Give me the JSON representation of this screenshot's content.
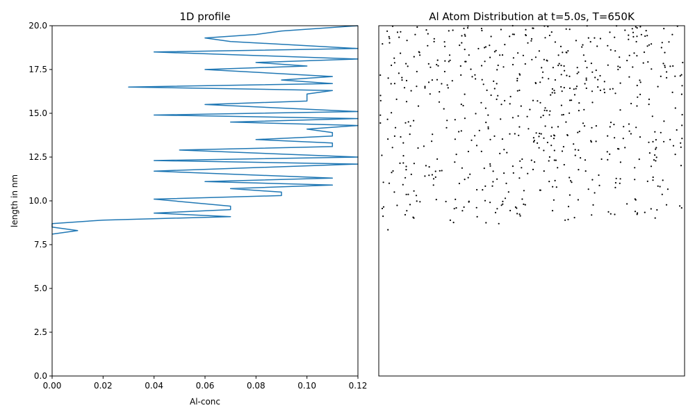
{
  "colors": {
    "line": "#1f77b4",
    "dots": "#000000",
    "axes": "#000000"
  },
  "chart_data": [
    {
      "type": "line",
      "title": "1D profile",
      "xlabel": "Al-conc",
      "ylabel": "length in nm",
      "xlim": [
        0,
        0.12
      ],
      "ylim": [
        0,
        20
      ],
      "grid": false,
      "xticks": [
        "0.00",
        "0.02",
        "0.04",
        "0.06",
        "0.08",
        "0.10",
        "0.12"
      ],
      "yticks": [
        "0.0",
        "2.5",
        "5.0",
        "7.5",
        "10.0",
        "12.5",
        "15.0",
        "17.5",
        "20.0"
      ],
      "series": [
        {
          "x": [
            0.0,
            0.01,
            0.0,
            0.0,
            0.02,
            0.07,
            0.04,
            0.07,
            0.07,
            0.04,
            0.09,
            0.09,
            0.07,
            0.11,
            0.06,
            0.11,
            0.04,
            0.12,
            0.04,
            0.12,
            0.05,
            0.11,
            0.11,
            0.08,
            0.11,
            0.11,
            0.1,
            0.12,
            0.07,
            0.12,
            0.04,
            0.12,
            0.06,
            0.1,
            0.1,
            0.11,
            0.03,
            0.11,
            0.09,
            0.11,
            0.06,
            0.1,
            0.08,
            0.12,
            0.04,
            0.12,
            0.07,
            0.06,
            0.08,
            0.09,
            0.12
          ],
          "y": [
            8.1,
            8.3,
            8.5,
            8.7,
            8.9,
            9.1,
            9.3,
            9.5,
            9.7,
            10.1,
            10.3,
            10.5,
            10.7,
            10.9,
            11.1,
            11.3,
            11.7,
            12.1,
            12.3,
            12.5,
            12.9,
            13.1,
            13.3,
            13.5,
            13.7,
            13.9,
            14.1,
            14.3,
            14.5,
            14.7,
            14.9,
            15.1,
            15.5,
            15.7,
            16.1,
            16.3,
            16.5,
            16.7,
            16.9,
            17.1,
            17.5,
            17.7,
            17.9,
            18.1,
            18.5,
            18.7,
            19.1,
            19.3,
            19.5,
            19.7,
            20.0
          ]
        }
      ]
    },
    {
      "type": "scatter",
      "title": "Al Atom Distribution at t=5.0s, T=650K",
      "xlim": [
        0,
        1
      ],
      "ylim": [
        0,
        20
      ],
      "grid": false,
      "xticks": [],
      "yticks": [],
      "layers": [
        {
          "ymin": 19.6,
          "ymax": 20.0,
          "count": 35
        },
        {
          "ymin": 17.5,
          "ymax": 19.6,
          "count": 145
        },
        {
          "ymin": 14.5,
          "ymax": 17.5,
          "count": 165
        },
        {
          "ymin": 12.0,
          "ymax": 14.5,
          "count": 140
        },
        {
          "ymin": 9.0,
          "ymax": 12.0,
          "count": 145
        },
        {
          "ymin": 8.7,
          "ymax": 9.0,
          "count": 6
        }
      ],
      "extra_points": [
        {
          "x": 0.03,
          "y": 8.35
        },
        {
          "x": 0.01,
          "y": 12.6
        },
        {
          "x": 0.99,
          "y": 17.2
        }
      ]
    }
  ]
}
